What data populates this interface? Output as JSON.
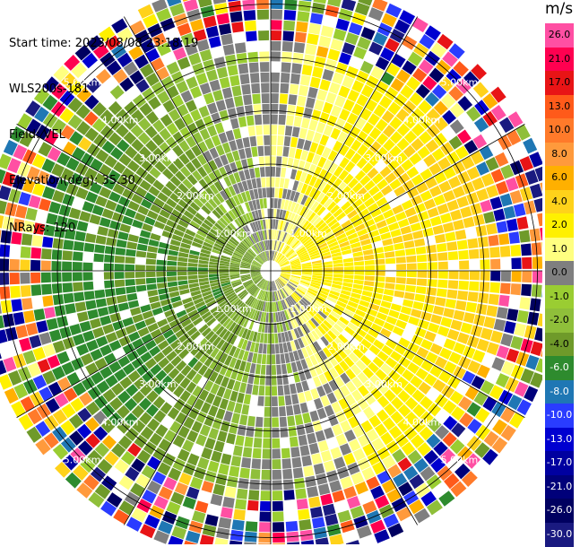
{
  "header": {
    "start_time": "Start time: 2023/08/08 23:18:19",
    "instrument": "WLS200s-181",
    "field": "Field: VEL",
    "elevation": "Elevation(deg): 35.30",
    "nrays": "NRays: 120"
  },
  "colorbar": {
    "unit": "m/s",
    "bands": [
      {
        "label": "26.0",
        "color": "#ff4fa3",
        "label_color": "#000000"
      },
      {
        "label": "21.0",
        "color": "#ff0050",
        "label_color": "#000000"
      },
      {
        "label": "17.0",
        "color": "#e81416",
        "label_color": "#000000"
      },
      {
        "label": "13.0",
        "color": "#ff5a1a",
        "label_color": "#000000"
      },
      {
        "label": "10.0",
        "color": "#ff7a2a",
        "label_color": "#000000"
      },
      {
        "label": "8.0",
        "color": "#ff9a3c",
        "label_color": "#000000"
      },
      {
        "label": "6.0",
        "color": "#ffb000",
        "label_color": "#000000"
      },
      {
        "label": "4.0",
        "color": "#ffd21a",
        "label_color": "#000000"
      },
      {
        "label": "2.0",
        "color": "#fff000",
        "label_color": "#000000"
      },
      {
        "label": "1.0",
        "color": "#ffff80",
        "label_color": "#000000"
      },
      {
        "label": "0.0",
        "color": "#7f7f7f",
        "label_color": "#000000"
      },
      {
        "label": "-1.0",
        "color": "#9acd32",
        "label_color": "#000000"
      },
      {
        "label": "-2.0",
        "color": "#8fbf3a",
        "label_color": "#000000"
      },
      {
        "label": "-4.0",
        "color": "#6f9a2a",
        "label_color": "#000000"
      },
      {
        "label": "-6.0",
        "color": "#2e8b2e",
        "label_color": "#ffffff"
      },
      {
        "label": "-8.0",
        "color": "#1f77b4",
        "label_color": "#ffffff"
      },
      {
        "label": "-10.0",
        "color": "#2a3cff",
        "label_color": "#ffffff"
      },
      {
        "label": "-13.0",
        "color": "#0000d0",
        "label_color": "#ffffff"
      },
      {
        "label": "-17.0",
        "color": "#0000a0",
        "label_color": "#ffffff"
      },
      {
        "label": "-21.0",
        "color": "#00007a",
        "label_color": "#ffffff"
      },
      {
        "label": "-26.0",
        "color": "#000060",
        "label_color": "#ffffff"
      },
      {
        "label": "-30.0",
        "color": "#1a1a80",
        "label_color": "#ffffff"
      }
    ]
  },
  "chart_data": {
    "type": "heatmap",
    "title": "",
    "field": "VEL",
    "unit": "m/s",
    "nrays": 120,
    "elevation_deg": 35.3,
    "range_rings_km": [
      1.0,
      2.0,
      3.0,
      4.0,
      5.0
    ],
    "ring_labels": [
      "1.00km",
      "2.00km",
      "3.00km",
      "4.00km",
      "5.00km"
    ],
    "max_range_km": 5.5,
    "gate_count": 28,
    "pattern": {
      "positive_sector_deg": [
        350,
        175
      ],
      "noise_beyond_km": 4.2,
      "description": "Receding velocities (yellow/orange) on east side, approaching velocities (green) on west side, gray near zero along north-south, noisy multi-colour outer gates"
    },
    "grid": true
  }
}
